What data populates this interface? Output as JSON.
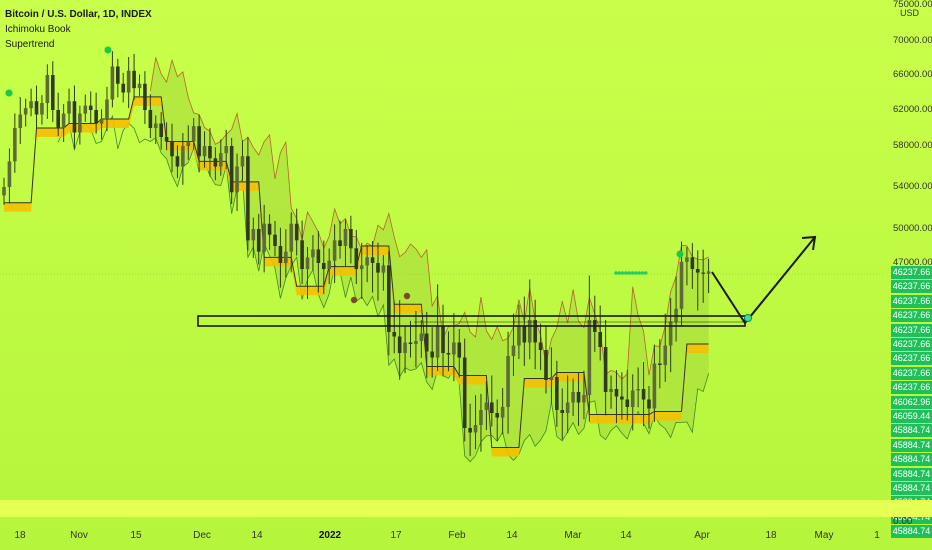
{
  "legend": {
    "title": "Bitcoin / U.S. Dollar, 1D, INDEX",
    "indicator1": "Ichimoku Book",
    "indicator2": "Supertrend"
  },
  "price_axis": {
    "unit": "USD",
    "labels": [
      {
        "text": "75000.00",
        "value": 75000
      },
      {
        "text": "70000.00",
        "value": 70000
      },
      {
        "text": "66000.00",
        "value": 66000
      },
      {
        "text": "62000.00",
        "value": 62000
      },
      {
        "text": "58000.00",
        "value": 58000
      },
      {
        "text": "54000.00",
        "value": 54000
      },
      {
        "text": "50000.00",
        "value": 50000
      },
      {
        "text": "47000.00",
        "value": 47000
      }
    ],
    "price_tags": [
      "46237.66",
      "46237.66",
      "46237.66",
      "46237.66",
      "46237.66",
      "46237.66",
      "46237.66",
      "46237.66",
      "46237.66",
      "46062.96",
      "46059.44",
      "45884.74",
      "45884.74",
      "45884.74",
      "45884.74",
      "45884.74",
      "45884.74",
      "45884.74",
      "45884.74"
    ],
    "bottom_value": "0.00",
    "tag_color": "#1fc05a"
  },
  "time_axis": {
    "labels": [
      {
        "text": "18",
        "bold": false
      },
      {
        "text": "Nov",
        "bold": false
      },
      {
        "text": "15",
        "bold": false
      },
      {
        "text": "Dec",
        "bold": false
      },
      {
        "text": "14",
        "bold": false
      },
      {
        "text": "2022",
        "bold": true
      },
      {
        "text": "17",
        "bold": false
      },
      {
        "text": "Feb",
        "bold": false
      },
      {
        "text": "14",
        "bold": false
      },
      {
        "text": "Mar",
        "bold": false
      },
      {
        "text": "14",
        "bold": false
      },
      {
        "text": "Apr",
        "bold": false
      },
      {
        "text": "18",
        "bold": false
      },
      {
        "text": "May",
        "bold": false
      },
      {
        "text": "1",
        "bold": false
      }
    ]
  },
  "colors": {
    "background": "#c2fb45",
    "candle": "#2f3a22",
    "band": "#f5c000",
    "band_edge": "#e08a00",
    "cloud_line": "#b8632a",
    "support_line": "#3c8a2a",
    "marker_green": "#19c94a",
    "marker_brown": "#7a4a2a",
    "drawing": "#1a1a1a"
  },
  "chart_data": {
    "type": "candlestick",
    "symbol": "Bitcoin / U.S. Dollar",
    "interval": "1D",
    "ylim": [
      42000,
      75000
    ],
    "close": [
      54000,
      56500,
      60000,
      61500,
      62200,
      63000,
      61500,
      62800,
      66000,
      62000,
      60000,
      61600,
      63000,
      59500,
      61600,
      62500,
      62000,
      60500,
      61000,
      63200,
      67000,
      65000,
      64000,
      66500,
      64500,
      65000,
      62000,
      60000,
      60500,
      59000,
      58500,
      57000,
      56000,
      58000,
      58500,
      60200,
      57000,
      58000,
      56800,
      56000,
      57300,
      58000,
      53500,
      56000,
      57000,
      49000,
      50000,
      48000,
      50500,
      49500,
      48500,
      47000,
      48000,
      50500,
      49000,
      46500,
      47500,
      48200,
      47000,
      46500,
      47200,
      49000,
      48500,
      50000,
      48300,
      46500,
      46800,
      47500,
      47000,
      46200,
      46800,
      43200,
      42900,
      41800,
      42500,
      42400,
      42600,
      43100,
      41900,
      41500,
      43600,
      41800,
      41700,
      42500,
      41500,
      36800,
      36500,
      37000,
      38000,
      38500,
      37800,
      37500,
      38200,
      41600,
      42300,
      43600,
      42500,
      44000,
      42500,
      42000,
      40000,
      40200,
      38000,
      37800,
      38500,
      39200,
      38500,
      39000,
      44000,
      43200,
      42200,
      39200,
      39400,
      38900,
      38700,
      38200,
      39300,
      39400,
      38700,
      38100,
      41100,
      41000,
      42300,
      43900,
      44500,
      47100,
      47500,
      46500,
      46200,
      46100,
      46300
    ]
  }
}
